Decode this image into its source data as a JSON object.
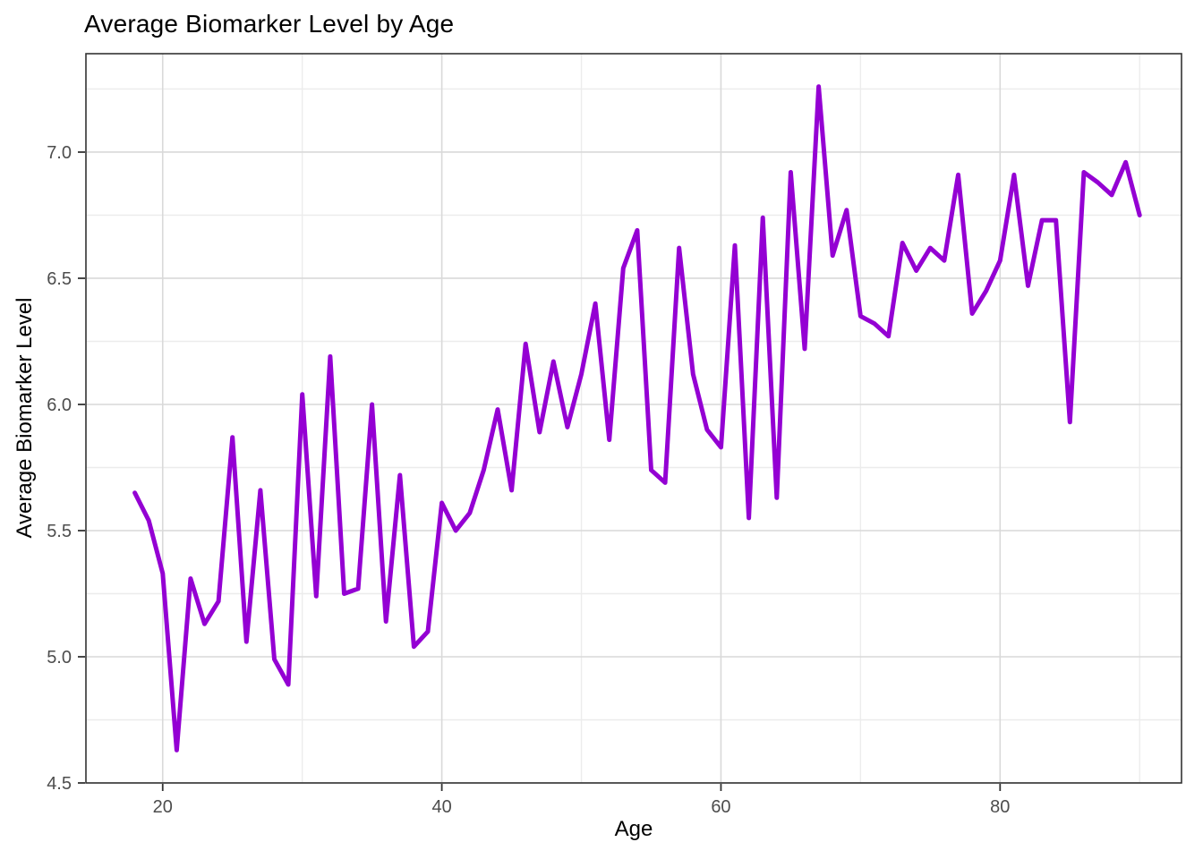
{
  "chart_data": {
    "type": "line",
    "title": "Average Biomarker Level by Age",
    "xlabel": "Age",
    "ylabel": "Average Biomarker Level",
    "series": [
      {
        "name": "average biomarker level",
        "x": [
          18,
          19,
          20,
          21,
          22,
          23,
          24,
          25,
          26,
          27,
          28,
          29,
          30,
          31,
          32,
          33,
          34,
          35,
          36,
          37,
          38,
          39,
          40,
          41,
          42,
          43,
          44,
          45,
          46,
          47,
          48,
          49,
          50,
          51,
          52,
          53,
          54,
          55,
          56,
          57,
          58,
          59,
          60,
          61,
          62,
          63,
          64,
          65,
          66,
          67,
          68,
          69,
          70,
          71,
          72,
          73,
          74,
          75,
          76,
          77,
          78,
          79,
          80,
          81,
          82,
          83,
          84,
          85,
          86,
          87,
          88,
          89,
          90
        ],
        "y": [
          5.65,
          5.54,
          5.33,
          4.63,
          5.31,
          5.13,
          5.22,
          5.87,
          5.06,
          5.66,
          4.99,
          4.89,
          6.04,
          5.24,
          6.19,
          5.25,
          5.27,
          6.0,
          5.14,
          5.72,
          5.04,
          5.1,
          5.61,
          5.5,
          5.57,
          5.74,
          5.98,
          5.66,
          6.24,
          5.89,
          6.17,
          5.91,
          6.12,
          6.4,
          5.86,
          6.54,
          6.69,
          5.74,
          5.69,
          6.62,
          6.12,
          5.9,
          5.83,
          6.63,
          5.55,
          6.74,
          5.63,
          6.92,
          6.22,
          7.26,
          6.59,
          6.77,
          6.35,
          6.32,
          6.27,
          6.64,
          6.53,
          6.62,
          6.57,
          6.91,
          6.36,
          6.45,
          6.57,
          6.91,
          6.47,
          6.73,
          6.73,
          5.93,
          6.92,
          6.88,
          6.83,
          6.96,
          6.75
        ]
      }
    ],
    "xlim": [
      14.5,
      93.0
    ],
    "ylim": [
      4.5,
      7.39
    ],
    "x_ticks": {
      "major": [
        20,
        40,
        60,
        80
      ],
      "minor": [
        30,
        50,
        70,
        90
      ],
      "labels": [
        "20",
        "40",
        "60",
        "80"
      ]
    },
    "y_ticks": {
      "major": [
        4.5,
        5.0,
        5.5,
        6.0,
        6.5,
        7.0
      ],
      "minor": [
        4.75,
        5.25,
        5.75,
        6.25,
        6.75,
        7.25
      ],
      "labels": [
        "4.5",
        "5.0",
        "5.5",
        "6.0",
        "6.5",
        "7.0"
      ]
    },
    "grid": true,
    "legend": "none",
    "colors": {
      "line": "#9400D3",
      "grid_major": "#D9D9D9",
      "grid_minor": "#ECECEC",
      "panel_border": "#333333",
      "tick_mark": "#333333",
      "tick_label": "#4D4D4D",
      "title_text": "#000000",
      "background": "#FFFFFF"
    },
    "line_width": 5
  }
}
